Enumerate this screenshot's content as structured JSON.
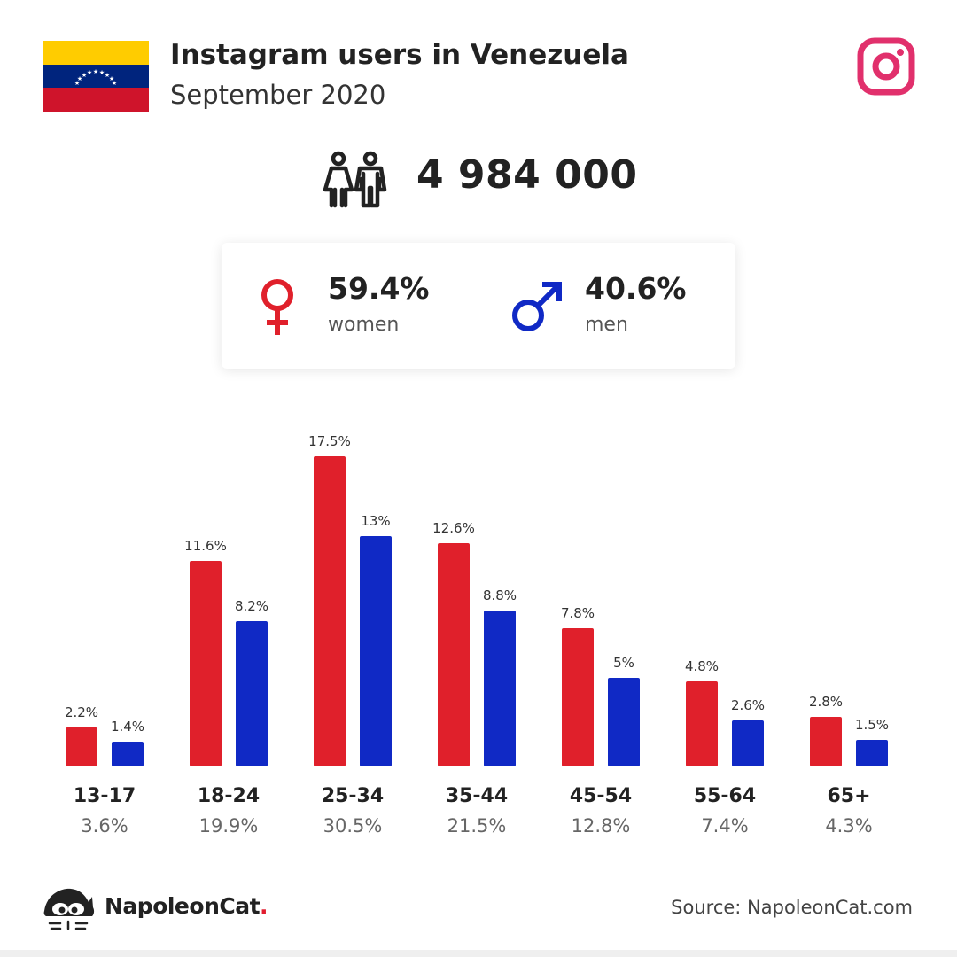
{
  "header": {
    "title": "Instagram users in Venezuela",
    "subtitle": "September 2020",
    "flag_icon": "venezuela-flag",
    "platform_icon": "instagram-icon"
  },
  "total": {
    "value": "4 984 000",
    "icon": "people-icon"
  },
  "gender": {
    "women": {
      "pct": "59.4%",
      "label": "women",
      "icon": "female-symbol-icon",
      "color": "#e0202b"
    },
    "men": {
      "pct": "40.6%",
      "label": "men",
      "icon": "male-symbol-icon",
      "color": "#1029c5"
    }
  },
  "chart_data": {
    "type": "bar",
    "categories": [
      "13-17",
      "18-24",
      "25-34",
      "35-44",
      "45-54",
      "55-64",
      "65+"
    ],
    "category_totals": [
      "3.6%",
      "19.9%",
      "30.5%",
      "21.5%",
      "12.8%",
      "7.4%",
      "4.3%"
    ],
    "series": [
      {
        "values": [
          2.2,
          11.6,
          17.5,
          12.6,
          7.8,
          4.8,
          2.8
        ],
        "labels": [
          "2.2%",
          "11.6%",
          "17.5%",
          "12.6%",
          "7.8%",
          "4.8%",
          "2.8%"
        ],
        "color": "#e0202b"
      },
      {
        "values": [
          1.4,
          8.2,
          13,
          8.8,
          5,
          2.6,
          1.5
        ],
        "labels": [
          "1.4%",
          "8.2%",
          "13%",
          "8.8%",
          "5%",
          "2.6%",
          "1.5%"
        ],
        "color": "#1029c5"
      }
    ],
    "unit": "%",
    "grid": false,
    "legend": "none"
  },
  "footer": {
    "brand_name": "NapoleonCat",
    "brand_dot": ".",
    "source": "Source: NapoleonCat.com",
    "logo_icon": "napoleoncat-logo-icon"
  }
}
